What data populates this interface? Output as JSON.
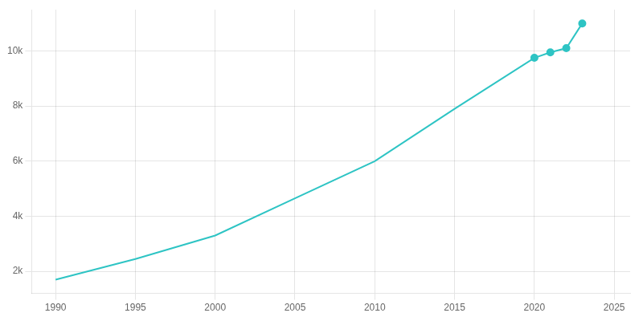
{
  "chart_data": {
    "type": "line",
    "x": [
      1990,
      1995,
      2000,
      2005,
      2010,
      2015,
      2020,
      2021,
      2022,
      2023
    ],
    "series": [
      {
        "color": "#2ec4c4",
        "marker": "none",
        "values": [
          1700,
          2450,
          3300,
          4650,
          6000,
          7900,
          9750,
          9950,
          10100,
          11000
        ]
      },
      {
        "type": "scatter",
        "color": "#2ec4c4",
        "marker": "circle",
        "x": [
          2020,
          2021,
          2022,
          2023
        ],
        "values": [
          9750,
          9950,
          10100,
          11000
        ]
      }
    ],
    "xlim": [
      1988.5,
      2026
    ],
    "ylim": [
      1200,
      11500
    ],
    "xticks": [
      1990,
      1995,
      2000,
      2005,
      2010,
      2015,
      2020,
      2025
    ],
    "yticks": [
      {
        "value": 2000,
        "label": "2k"
      },
      {
        "value": 4000,
        "label": "4k"
      },
      {
        "value": 6000,
        "label": "6k"
      },
      {
        "value": 8000,
        "label": "8k"
      },
      {
        "value": 10000,
        "label": "10k"
      }
    ],
    "grid": true
  }
}
